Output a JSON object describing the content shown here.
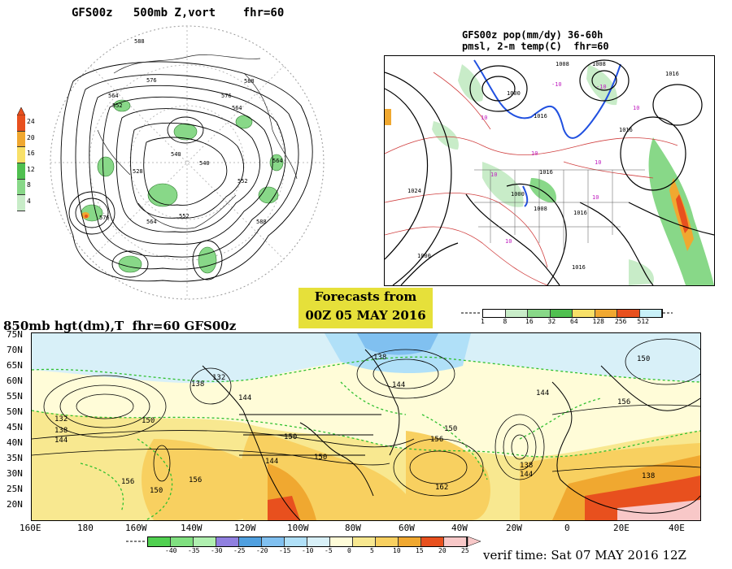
{
  "polar": {
    "title": "GFS00z   500mb Z,vort    fhr=60",
    "colorbar_labels": [
      "24",
      "20",
      "16",
      "12",
      "8",
      "4"
    ],
    "colorbar_colors": [
      "#e8501e",
      "#f0a830",
      "#f8e068",
      "#50c050",
      "#88d888",
      "#c8ecc8"
    ],
    "contour_labels": [
      "588",
      "576",
      "564",
      "552",
      "540",
      "528",
      "552",
      "564",
      "576",
      "588",
      "564",
      "540",
      "576",
      "564",
      "552",
      "588"
    ]
  },
  "surface": {
    "title_line1": "GFS00z pop(mm/dy) 36-60h",
    "title_line2": "pmsl, 2-m temp(C)  fhr=60",
    "isobar_labels": [
      "1024",
      "1008",
      "1008",
      "1000",
      "1016",
      "1016",
      "1016",
      "1016",
      "1016",
      "1000",
      "1008",
      "1016",
      "1000"
    ],
    "temp_labels": [
      "10",
      "10",
      "10",
      "10",
      "10",
      "10",
      "10",
      "-10",
      "-10"
    ],
    "colorbar_labels": [
      "1",
      "8",
      "16",
      "32",
      "64",
      "128",
      "256",
      "512"
    ],
    "colorbar_colors": [
      "#ffffff",
      "#c8ecc8",
      "#88d888",
      "#50c050",
      "#f8e068",
      "#f0a830",
      "#e8501e",
      "#c8f0f8"
    ]
  },
  "forecast_box": {
    "line1": "Forecasts from",
    "line2": "00Z 05 MAY 2016"
  },
  "main": {
    "title": "850mb hgt(dm),T  fhr=60 GFS00z",
    "lat_labels": [
      "75N",
      "70N",
      "65N",
      "60N",
      "55N",
      "50N",
      "45N",
      "40N",
      "35N",
      "30N",
      "25N",
      "20N"
    ],
    "lon_labels": [
      "160E",
      "180",
      "160W",
      "140W",
      "120W",
      "100W",
      "80W",
      "60W",
      "40W",
      "20W",
      "0",
      "20E",
      "40E"
    ],
    "height_labels": [
      "132",
      "138",
      "144",
      "150",
      "156",
      "132",
      "138",
      "144",
      "150",
      "156",
      "150",
      "144",
      "150",
      "138",
      "144",
      "156",
      "162",
      "150",
      "138",
      "144",
      "150",
      "156",
      "144",
      "138"
    ],
    "colorbar_labels": [
      "-40",
      "-35",
      "-30",
      "-25",
      "-20",
      "-15",
      "-10",
      "-5",
      "0",
      "5",
      "10",
      "15",
      "20",
      "25"
    ],
    "colorbar_colors": [
      "#50d050",
      "#80e080",
      "#b0f0b0",
      "#9080e0",
      "#50a0e0",
      "#80c0f0",
      "#b0e0f8",
      "#d8f0f8",
      "#fffcd8",
      "#f8e890",
      "#f8d060",
      "#f0a830",
      "#e8501e",
      "#f8c8c8"
    ]
  },
  "verif": "verif time: Sat 07 MAY 2016 12Z"
}
